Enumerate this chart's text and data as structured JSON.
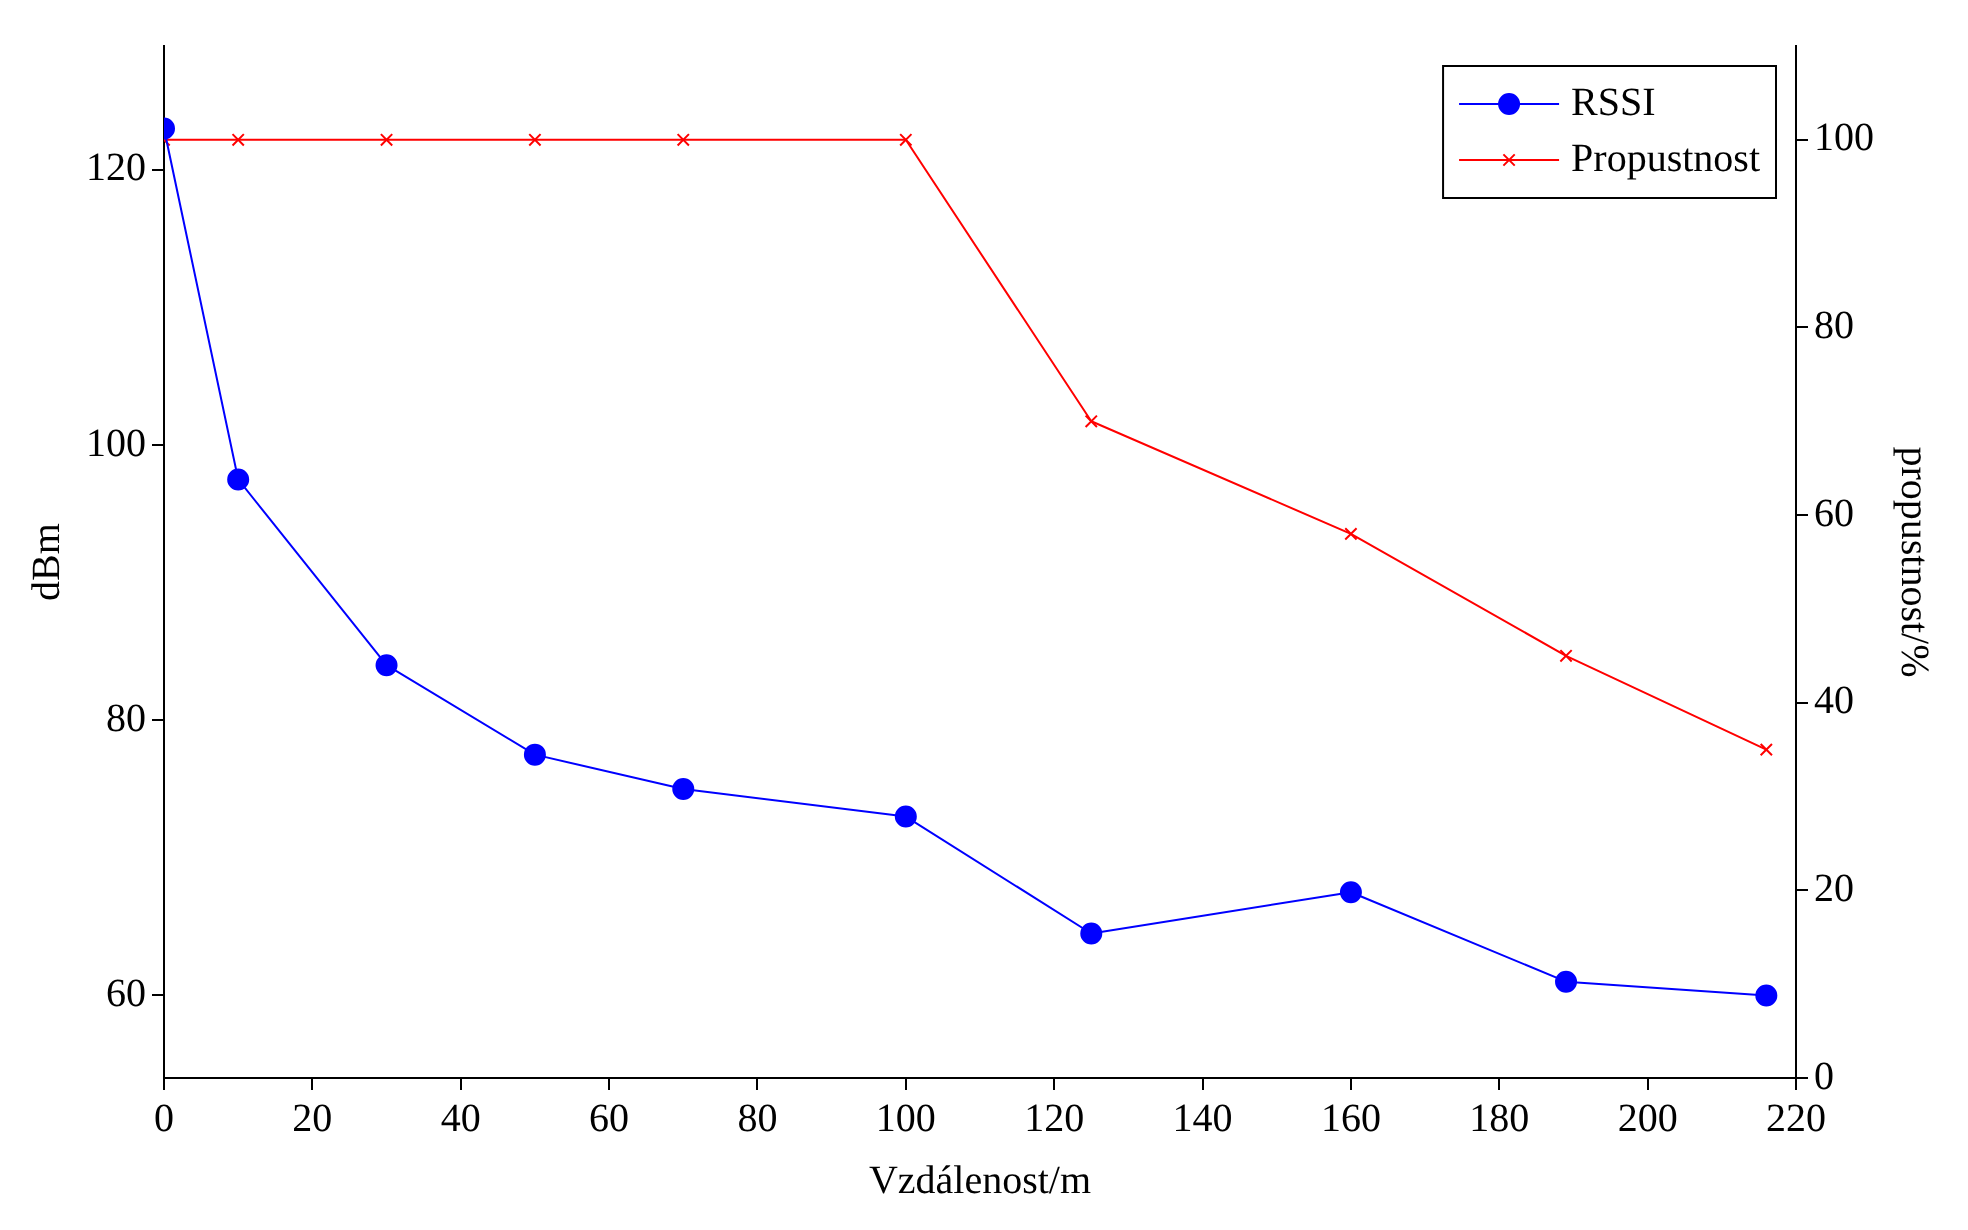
{
  "chart_data": {
    "type": "line",
    "xlabel": "Vzdálenost/m",
    "ylabel": "dBm",
    "y2label": "propustnost/%",
    "x": [
      0,
      10,
      30,
      50,
      70,
      100,
      125,
      160,
      189,
      216
    ],
    "series": [
      {
        "name": "RSSI",
        "color": "#0000ff",
        "marker": "circle",
        "values": [
          123,
          97.5,
          84,
          77.5,
          75,
          73,
          64.5,
          67.5,
          61,
          60
        ]
      },
      {
        "name": "Propustnost",
        "color": "#ff0000",
        "marker": "cross",
        "axis": "y2",
        "values": [
          100,
          100,
          100,
          100,
          100,
          100,
          70,
          58,
          45,
          35
        ]
      }
    ],
    "xlim": [
      0,
      220
    ],
    "xticks": [
      0,
      20,
      40,
      60,
      80,
      100,
      120,
      140,
      160,
      180,
      200,
      220
    ],
    "ylim": [
      54,
      129
    ],
    "yticks": [
      60,
      80,
      100,
      120
    ],
    "y2lim": [
      0,
      110
    ],
    "y2ticks": [
      0,
      20,
      40,
      60,
      80,
      100
    ],
    "legend": "top right",
    "grid": false
  }
}
